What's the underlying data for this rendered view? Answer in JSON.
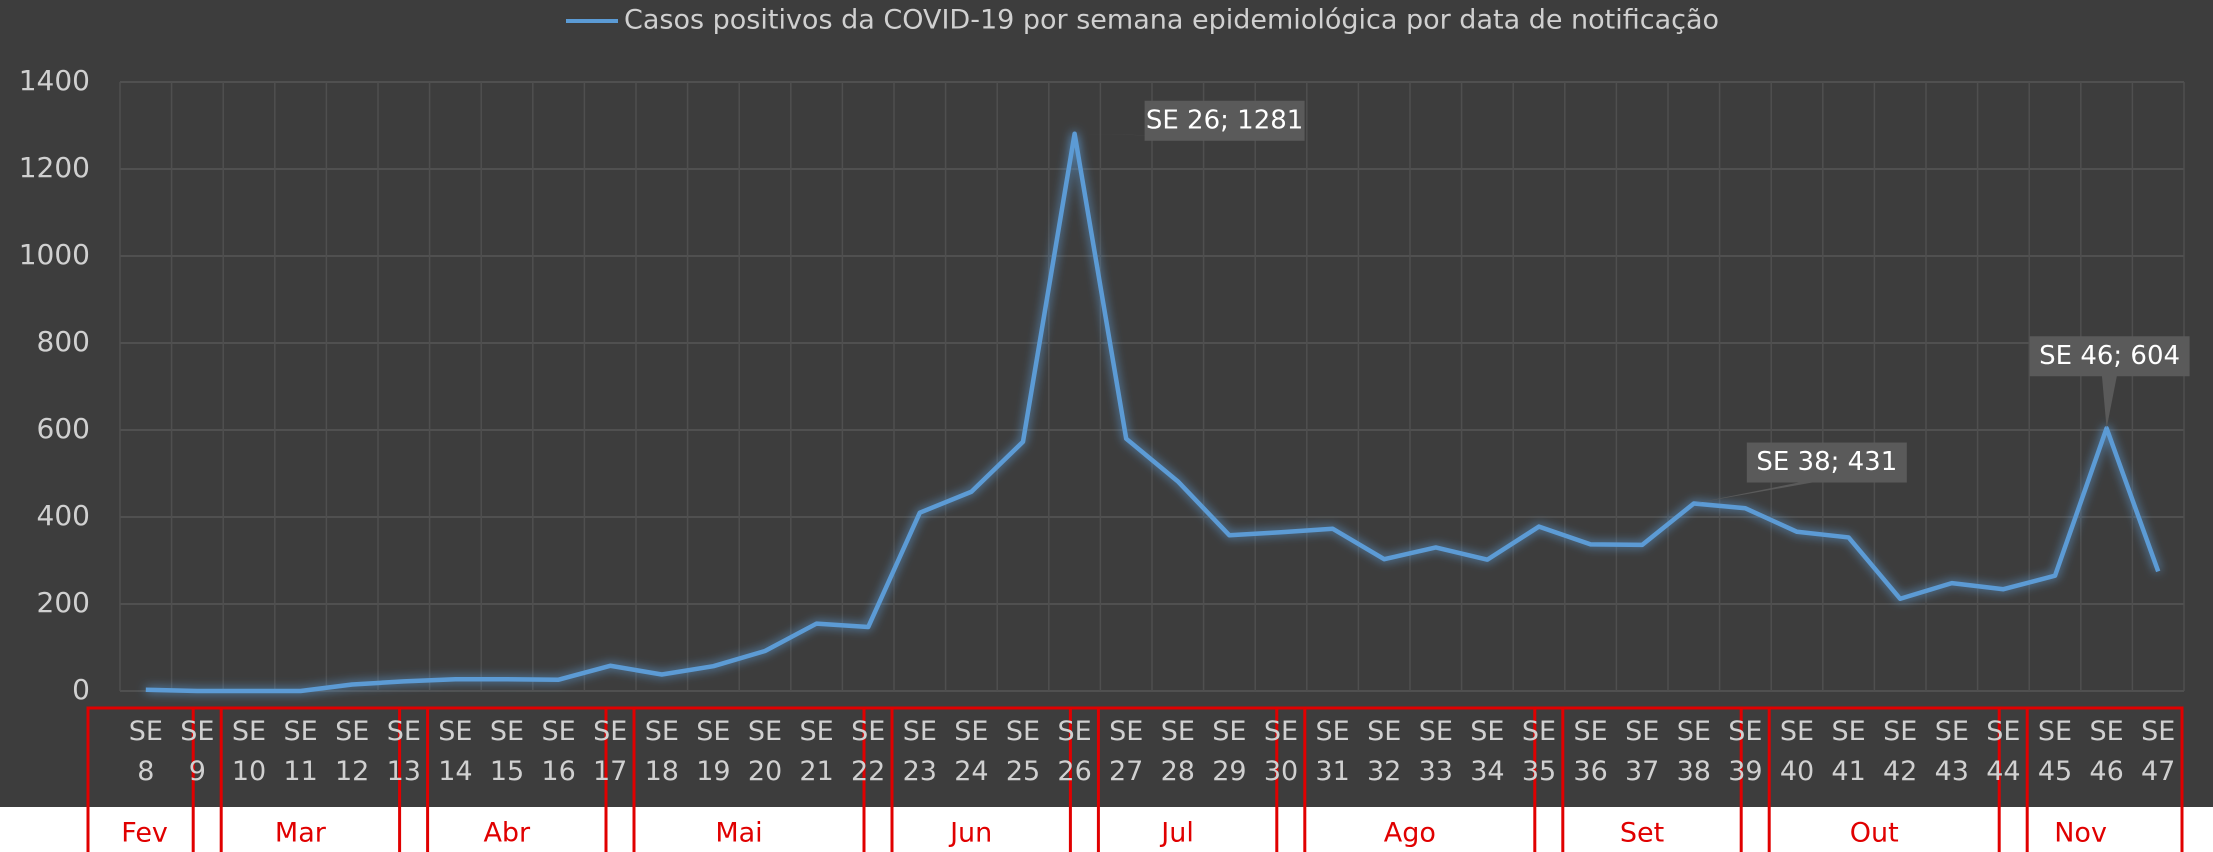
{
  "chart_data": {
    "type": "line",
    "categories": [
      "SE 8",
      "SE 9",
      "SE 10",
      "SE 11",
      "SE 12",
      "SE 13",
      "SE 14",
      "SE 15",
      "SE 16",
      "SE 17",
      "SE 18",
      "SE 19",
      "SE 20",
      "SE 21",
      "SE 22",
      "SE 23",
      "SE 24",
      "SE 25",
      "SE 26",
      "SE 27",
      "SE 28",
      "SE 29",
      "SE 30",
      "SE 31",
      "SE 32",
      "SE 33",
      "SE 34",
      "SE 35",
      "SE 36",
      "SE 37",
      "SE 38",
      "SE 39",
      "SE 40",
      "SE 41",
      "SE 42",
      "SE 43",
      "SE 44",
      "SE 45",
      "SE 46",
      "SE 47"
    ],
    "series": [
      {
        "name": "Casos positivos da COVID-19 por semana epidemiológica por data de notificação",
        "color": "#5b9bd5",
        "values": [
          3,
          0,
          0,
          0,
          15,
          22,
          27,
          27,
          26,
          58,
          38,
          57,
          92,
          155,
          147,
          410,
          458,
          573,
          1281,
          580,
          482,
          358,
          365,
          373,
          303,
          330,
          302,
          378,
          337,
          336,
          431,
          420,
          366,
          353,
          212,
          248,
          234,
          265,
          604,
          275
        ],
        "value_labels": [
          null,
          null,
          null,
          null,
          null,
          null,
          null,
          null,
          null,
          null,
          null,
          null,
          null,
          null,
          null,
          null,
          null,
          null,
          "SE 26; 1281",
          null,
          null,
          null,
          null,
          null,
          null,
          null,
          null,
          null,
          null,
          null,
          "SE 38; 431",
          null,
          null,
          null,
          null,
          null,
          null,
          null,
          "SE 46; 604",
          null
        ]
      }
    ],
    "months": [
      {
        "label": "Fev",
        "span": 2
      },
      {
        "label": "Mar",
        "span": 4
      },
      {
        "label": "Abr",
        "span": 4
      },
      {
        "label": "Mai",
        "span": 5
      },
      {
        "label": "Jun",
        "span": 4
      },
      {
        "label": "Jul",
        "span": 4
      },
      {
        "label": "Ago",
        "span": 5
      },
      {
        "label": "Set",
        "span": 4
      },
      {
        "label": "Out",
        "span": 5
      },
      {
        "label": "Nov",
        "span": 3
      }
    ],
    "ylim": [
      0,
      1400
    ],
    "yticks": [
      0,
      200,
      400,
      600,
      800,
      1000,
      1200,
      1400
    ],
    "grid": true
  }
}
